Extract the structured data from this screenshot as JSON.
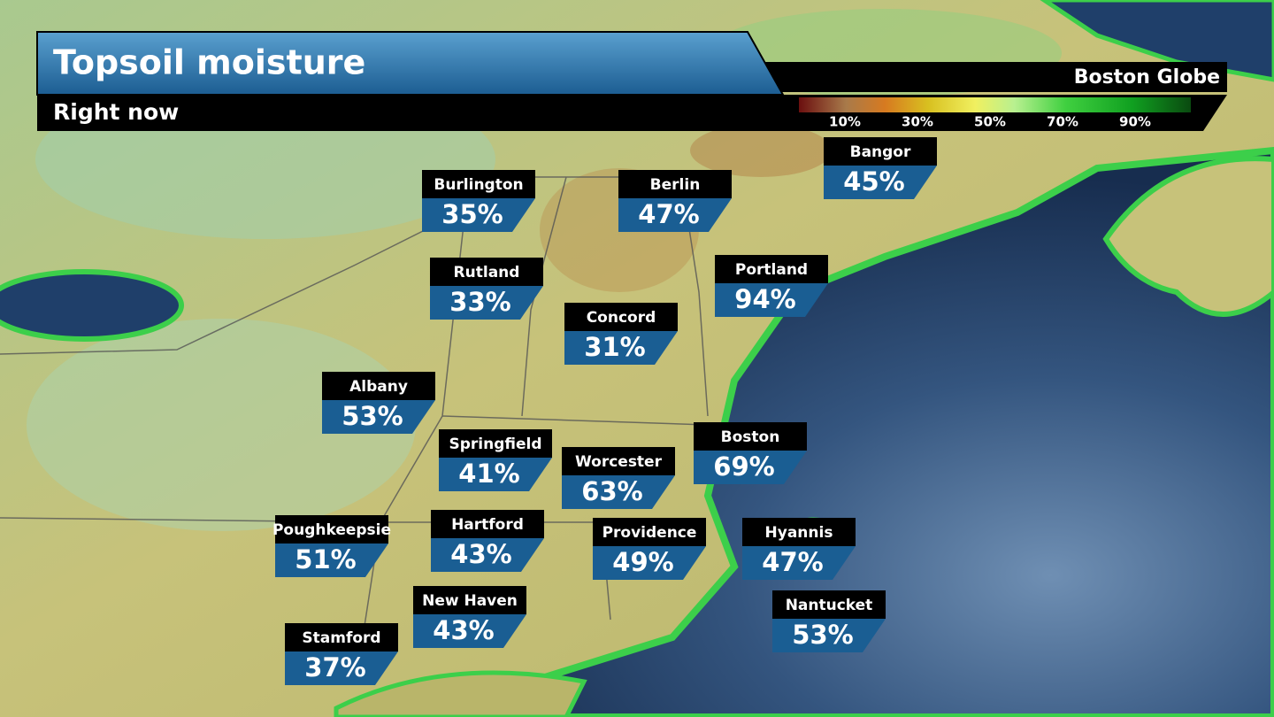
{
  "header": {
    "title": "Topsoil moisture",
    "subtitle": "Right now",
    "brand": "Boston Globe"
  },
  "legend": {
    "labels": [
      "10%",
      "30%",
      "50%",
      "70%",
      "90%"
    ]
  },
  "cities": [
    {
      "name": "Burlington",
      "value": "35%"
    },
    {
      "name": "Berlin",
      "value": "47%"
    },
    {
      "name": "Bangor",
      "value": "45%"
    },
    {
      "name": "Rutland",
      "value": "33%"
    },
    {
      "name": "Portland",
      "value": "94%"
    },
    {
      "name": "Concord",
      "value": "31%"
    },
    {
      "name": "Albany",
      "value": "53%"
    },
    {
      "name": "Springfield",
      "value": "41%"
    },
    {
      "name": "Worcester",
      "value": "63%"
    },
    {
      "name": "Boston",
      "value": "69%"
    },
    {
      "name": "Poughkeepsie",
      "value": "51%"
    },
    {
      "name": "Hartford",
      "value": "43%"
    },
    {
      "name": "Providence",
      "value": "49%"
    },
    {
      "name": "Hyannis",
      "value": "47%"
    },
    {
      "name": "New Haven",
      "value": "43%"
    },
    {
      "name": "Nantucket",
      "value": "53%"
    },
    {
      "name": "Stamford",
      "value": "37%"
    }
  ]
}
